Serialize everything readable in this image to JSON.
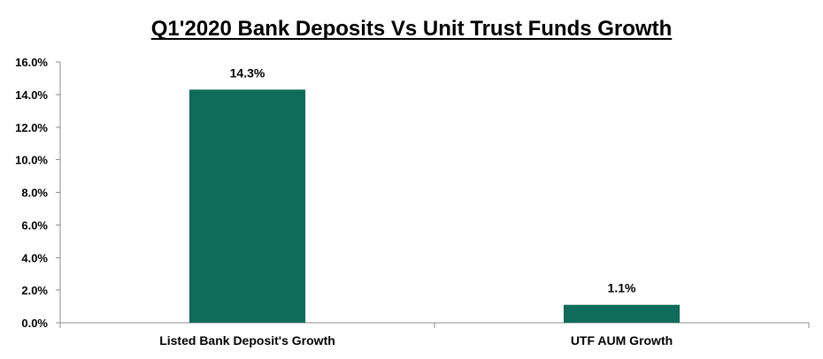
{
  "chart_data": {
    "type": "bar",
    "title": "Q1'2020 Bank Deposits Vs Unit Trust Funds Growth",
    "categories": [
      "Listed Bank Deposit's Growth",
      "UTF AUM Growth"
    ],
    "values": [
      14.3,
      1.1
    ],
    "data_labels": [
      "14.3%",
      "1.1%"
    ],
    "ylim": [
      0,
      16
    ],
    "yticks": [
      0,
      2,
      4,
      6,
      8,
      10,
      12,
      14,
      16
    ],
    "ytick_labels": [
      "0.0%",
      "2.0%",
      "4.0%",
      "6.0%",
      "8.0%",
      "10.0%",
      "12.0%",
      "14.0%",
      "16.0%"
    ],
    "xlabel": "",
    "ylabel": "",
    "grid": false,
    "legend": "none",
    "bar_color": "#0f6b5a"
  }
}
